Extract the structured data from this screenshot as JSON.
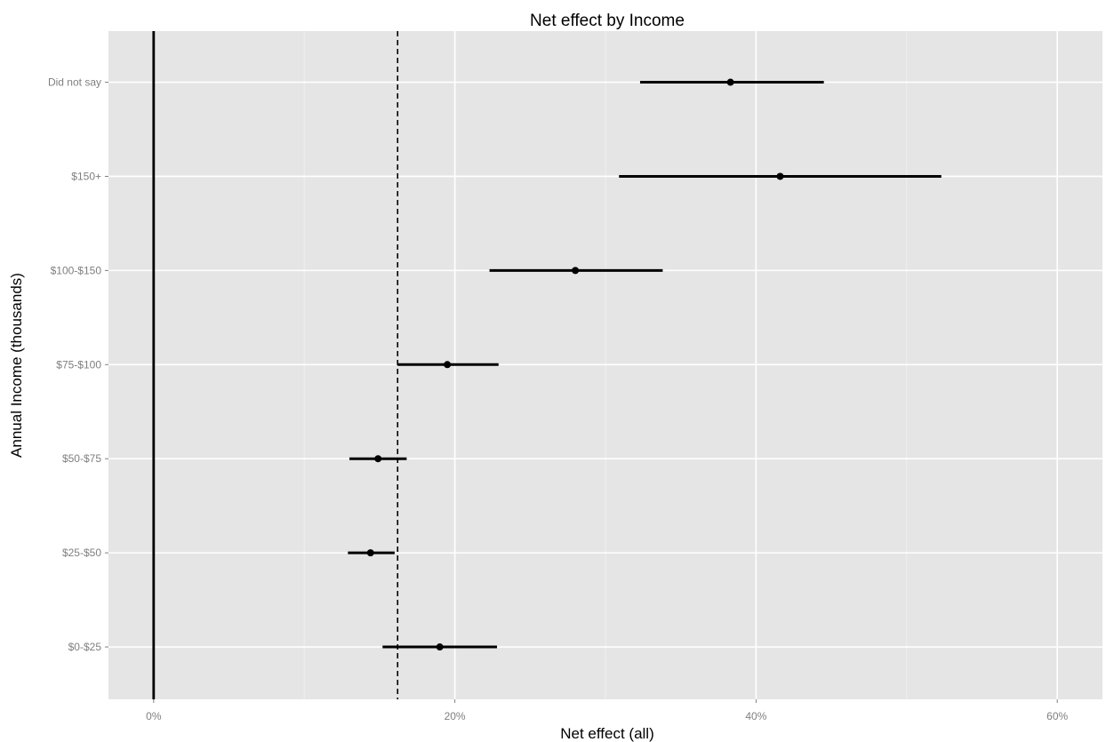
{
  "chart_data": {
    "type": "scatter",
    "title": "Net effect by Income",
    "xlabel": "Net effect (all)",
    "ylabel": "Annual Income (thousands)",
    "xlim": [
      -3,
      63
    ],
    "x_ticks": [
      0,
      20,
      40,
      60
    ],
    "x_tick_labels": [
      "0%",
      "20%",
      "40%",
      "60%"
    ],
    "categories": [
      "$0-$25",
      "$25-$50",
      "$50-$75",
      "$75-$100",
      "$100-$150",
      "$150+",
      "Did not say"
    ],
    "series": [
      {
        "values": [
          19.0,
          14.4,
          14.9,
          19.5,
          28.0,
          41.6,
          38.3
        ],
        "lower": [
          15.2,
          12.9,
          13.0,
          16.2,
          22.3,
          30.9,
          32.3
        ],
        "upper": [
          22.8,
          16.0,
          16.8,
          22.9,
          33.8,
          52.3,
          44.5
        ]
      }
    ],
    "reference_lines": [
      {
        "x": 0,
        "style": "solid"
      },
      {
        "x": 16.2,
        "style": "dashed"
      }
    ],
    "grid": true,
    "legend": "none",
    "colors": {
      "panel": "#e5e5e5",
      "grid": "#ffffff",
      "marks": "#000000",
      "tick_text": "#7f7f7f"
    }
  }
}
